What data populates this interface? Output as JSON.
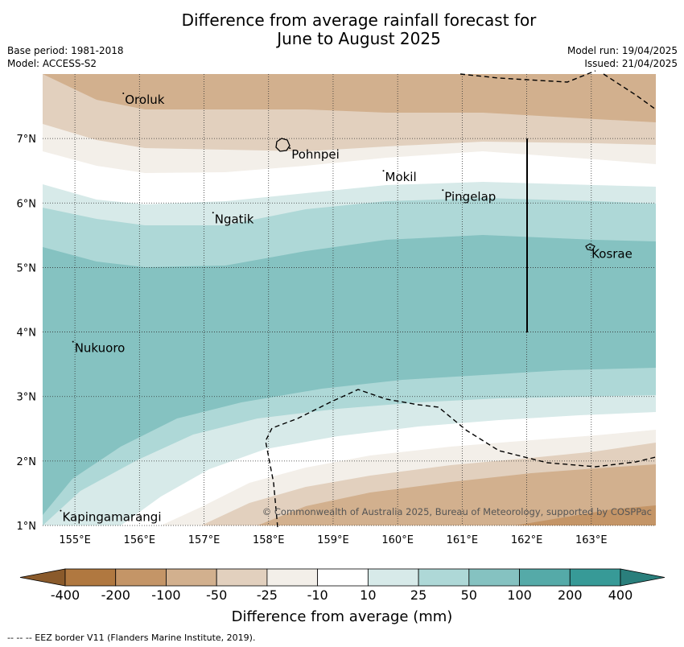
{
  "title_line1": "Difference from average rainfall forecast for",
  "title_line2": "June to August 2025",
  "base_period": "Base period: 1981-2018",
  "model": "Model: ACCESS-S2",
  "model_run": "Model run: 19/04/2025",
  "issued": "Issued: 21/04/2025",
  "credit": "© Commonwealth of Australia 2025, Bureau of Meteorology, supported by COSPPac",
  "colorbar_label": "Difference from average (mm)",
  "footnote": "--  --  -- EEZ border V11 (Flanders Marine Institute, 2019).",
  "lon_labels": [
    "155°E",
    "156°E",
    "157°E",
    "158°E",
    "159°E",
    "160°E",
    "161°E",
    "162°E",
    "163°E"
  ],
  "lat_labels": [
    "1°N",
    "2°N",
    "3°N",
    "4°N",
    "5°N",
    "6°N",
    "7°N"
  ],
  "colorbar": {
    "ticks": [
      "-400",
      "-200",
      "-100",
      "-50",
      "-25",
      "-10",
      "10",
      "25",
      "50",
      "100",
      "200",
      "400"
    ],
    "colors": [
      "#8a5a2b",
      "#b07840",
      "#c49567",
      "#d2b08e",
      "#e2d0be",
      "#f3efe9",
      "#ffffff",
      "#d7eae9",
      "#aed8d7",
      "#85c2c1",
      "#55aaa8",
      "#379a97",
      "#2a7f7c"
    ]
  },
  "places": [
    {
      "name": "Oroluk",
      "lon": 155.75,
      "lat": 7.7
    },
    {
      "name": "Pohnpei",
      "lon": 158.33,
      "lat": 6.85
    },
    {
      "name": "Mokil",
      "lon": 159.78,
      "lat": 6.5
    },
    {
      "name": "Pingelap",
      "lon": 160.7,
      "lat": 6.2
    },
    {
      "name": "Ngatik",
      "lon": 157.14,
      "lat": 5.85
    },
    {
      "name": "Kosrae",
      "lon": 162.98,
      "lat": 5.31
    },
    {
      "name": "Nukuoro",
      "lon": 154.97,
      "lat": 3.85
    },
    {
      "name": "Kapingamarangi",
      "lon": 154.78,
      "lat": 1.23
    }
  ]
}
